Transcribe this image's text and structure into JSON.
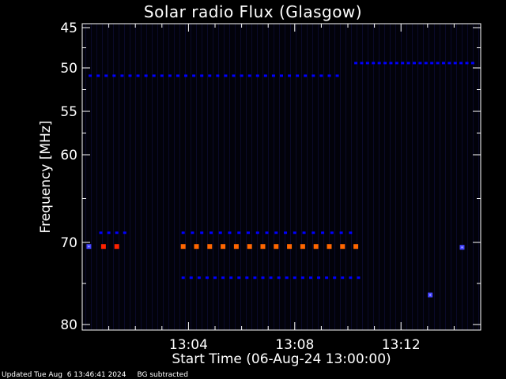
{
  "chart_data": {
    "type": "heatmap",
    "title": "Solar radio Flux (Glasgow)",
    "xlabel": "Start Time (06-Aug-24 13:00:00)",
    "ylabel": "Frequency [MHz]",
    "x_unit": "minutes after 13:00:00",
    "xlim": [
      0,
      15
    ],
    "ylim": [
      45,
      80
    ],
    "x_ticks": [
      {
        "value": 4,
        "label": "13:04"
      },
      {
        "value": 8,
        "label": "13:08"
      },
      {
        "value": 12,
        "label": "13:12"
      }
    ],
    "y_ticks": [
      {
        "value": 45,
        "label": "45"
      },
      {
        "value": 50,
        "label": "50"
      },
      {
        "value": 55,
        "label": "55"
      },
      {
        "value": 60,
        "label": "60"
      },
      {
        "value": 70,
        "label": "70"
      },
      {
        "value": 80,
        "label": "80"
      }
    ],
    "background_color": "#000000",
    "colors": {
      "weak": "#0000ff",
      "medium": "#4444ff",
      "strong": "#ff6600",
      "peak": "#ff2200"
    },
    "emission_bands": [
      {
        "freq": 50.9,
        "t_start": 0.3,
        "t_end": 9.8,
        "step": 0.3,
        "intensity": "weak"
      },
      {
        "freq": 49.4,
        "t_start": 10.3,
        "t_end": 14.9,
        "step": 0.22,
        "intensity": "weak"
      },
      {
        "freq": 68.9,
        "t_start": 0.7,
        "t_end": 1.6,
        "step": 0.3,
        "intensity": "weak"
      },
      {
        "freq": 68.9,
        "t_start": 3.8,
        "t_end": 10.4,
        "step": 0.35,
        "intensity": "weak"
      },
      {
        "freq": 70.5,
        "t_start": 3.8,
        "t_end": 10.4,
        "step": 0.5,
        "intensity": "strong"
      },
      {
        "freq": 70.5,
        "t_start": 0.8,
        "t_end": 0.8,
        "step": 1,
        "intensity": "peak"
      },
      {
        "freq": 70.5,
        "t_start": 1.3,
        "t_end": 1.3,
        "step": 1,
        "intensity": "peak"
      },
      {
        "freq": 74.3,
        "t_start": 3.8,
        "t_end": 10.4,
        "step": 0.3,
        "intensity": "weak"
      }
    ],
    "isolated_points": [
      {
        "t": 13.1,
        "freq": 76.4,
        "intensity": "medium"
      },
      {
        "t": 14.3,
        "freq": 70.6,
        "intensity": "medium"
      },
      {
        "t": 0.25,
        "freq": 70.5,
        "intensity": "medium"
      }
    ]
  },
  "footer": {
    "updated": "Updated Tue Aug  6 13:46:41 2024",
    "note": "BG subtracted"
  }
}
